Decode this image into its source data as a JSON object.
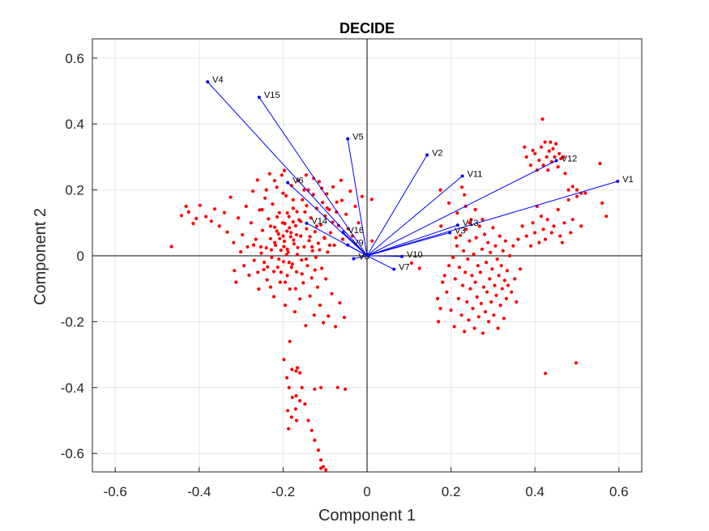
{
  "chart_data": {
    "type": "scatter",
    "title": "DECIDE",
    "xlabel": "Component 1",
    "ylabel": "Component 2",
    "xlim": [
      -0.65,
      0.65
    ],
    "ylim": [
      -0.65,
      0.65
    ],
    "xticks": [
      -0.6,
      -0.4,
      -0.2,
      0,
      0.2,
      0.4,
      0.6
    ],
    "yticks": [
      -0.6,
      -0.4,
      -0.2,
      0,
      0.2,
      0.4,
      0.6
    ],
    "xtick_labels": [
      "-0.6",
      "-0.4",
      "-0.2",
      "0",
      "0.2",
      "0.4",
      "0.6"
    ],
    "ytick_labels": [
      "-0.6",
      "-0.4",
      "-0.2",
      "0",
      "0.2",
      "0.4",
      "0.6"
    ],
    "grid": true,
    "colors": {
      "vectors": "#0000ff",
      "points": "#ff0000",
      "axes": "#262626",
      "grid": "#e6e6e6"
    },
    "vectors": [
      {
        "name": "V1",
        "x": 0.597,
        "y": 0.226
      },
      {
        "name": "V2",
        "x": 0.143,
        "y": 0.306
      },
      {
        "name": "V3",
        "x": 0.197,
        "y": 0.07
      },
      {
        "name": "V4",
        "x": -0.38,
        "y": 0.528
      },
      {
        "name": "V5",
        "x": -0.046,
        "y": 0.355
      },
      {
        "name": "V6",
        "x": -0.189,
        "y": 0.222
      },
      {
        "name": "V7",
        "x": 0.064,
        "y": -0.041
      },
      {
        "name": "V8",
        "x": -0.032,
        "y": -0.009
      },
      {
        "name": "V9",
        "x": -0.046,
        "y": 0.033
      },
      {
        "name": "V10",
        "x": 0.083,
        "y": -0.002
      },
      {
        "name": "V11",
        "x": 0.227,
        "y": 0.242
      },
      {
        "name": "V12",
        "x": 0.451,
        "y": 0.289
      },
      {
        "name": "V13",
        "x": 0.216,
        "y": 0.093
      },
      {
        "name": "V14",
        "x": -0.144,
        "y": 0.099
      },
      {
        "name": "V15",
        "x": -0.257,
        "y": 0.481
      },
      {
        "name": "V16",
        "x": -0.057,
        "y": 0.071
      }
    ],
    "points": [
      [
        -0.466,
        0.028
      ],
      [
        -0.442,
        0.122
      ],
      [
        -0.431,
        0.15
      ],
      [
        -0.425,
        0.133
      ],
      [
        -0.414,
        0.098
      ],
      [
        -0.407,
        0.113
      ],
      [
        -0.398,
        0.153
      ],
      [
        -0.384,
        0.119
      ],
      [
        -0.371,
        0.105
      ],
      [
        -0.363,
        0.142
      ],
      [
        -0.352,
        0.09
      ],
      [
        -0.34,
        0.131
      ],
      [
        -0.333,
        0.072
      ],
      [
        -0.325,
        0.178
      ],
      [
        -0.316,
        -0.045
      ],
      [
        -0.318,
        0.04
      ],
      [
        -0.312,
        -0.08
      ],
      [
        -0.307,
        0.115
      ],
      [
        -0.301,
        0.012
      ],
      [
        -0.297,
        0.064
      ],
      [
        -0.293,
        -0.03
      ],
      [
        -0.288,
        0.15
      ],
      [
        -0.285,
        0.027
      ],
      [
        -0.281,
        -0.059
      ],
      [
        -0.276,
        0.1
      ],
      [
        -0.272,
        0.196
      ],
      [
        -0.269,
        -0.014
      ],
      [
        -0.265,
        0.05
      ],
      [
        -0.261,
        0.23
      ],
      [
        -0.258,
        -0.101
      ],
      [
        -0.256,
        0.139
      ],
      [
        -0.252,
        0.008
      ],
      [
        -0.249,
        0.077
      ],
      [
        -0.246,
        -0.042
      ],
      [
        -0.243,
        0.175
      ],
      [
        -0.24,
        0.024
      ],
      [
        -0.238,
        -0.073
      ],
      [
        -0.235,
        0.112
      ],
      [
        -0.232,
        0.249
      ],
      [
        -0.23,
        0.052
      ],
      [
        -0.227,
        -0.005
      ],
      [
        -0.225,
        0.157
      ],
      [
        -0.222,
        -0.124
      ],
      [
        -0.22,
        0.087
      ],
      [
        -0.218,
        0.032
      ],
      [
        -0.215,
        0.208
      ],
      [
        -0.213,
        -0.035
      ],
      [
        -0.211,
        0.066
      ],
      [
        -0.209,
        0.131
      ],
      [
        -0.207,
        -0.08
      ],
      [
        -0.205,
        0.017
      ],
      [
        -0.203,
        0.245
      ],
      [
        -0.201,
        0.1
      ],
      [
        -0.199,
        -0.018
      ],
      [
        -0.197,
        0.044
      ],
      [
        -0.195,
        -0.15
      ],
      [
        -0.193,
        0.182
      ],
      [
        -0.191,
        0.075
      ],
      [
        -0.19,
        -0.06
      ],
      [
        -0.188,
        0.011
      ],
      [
        -0.186,
        0.119
      ],
      [
        -0.184,
        -0.101
      ],
      [
        -0.182,
        0.058
      ],
      [
        -0.18,
        0.213
      ],
      [
        -0.178,
        -0.025
      ],
      [
        -0.176,
        0.144
      ],
      [
        -0.174,
        0.036
      ],
      [
        -0.172,
        -0.17
      ],
      [
        -0.17,
        0.091
      ],
      [
        -0.168,
        -0.049
      ],
      [
        -0.166,
        0.004
      ],
      [
        -0.164,
        0.228
      ],
      [
        -0.162,
        0.109
      ],
      [
        -0.16,
        -0.131
      ],
      [
        -0.158,
        0.06
      ],
      [
        -0.156,
        -0.013
      ],
      [
        -0.154,
        0.17
      ],
      [
        -0.152,
        -0.082
      ],
      [
        -0.15,
        0.027
      ],
      [
        -0.148,
        0.133
      ],
      [
        -0.146,
        -0.212
      ],
      [
        -0.144,
        0.082
      ],
      [
        -0.142,
        -0.03
      ],
      [
        -0.14,
        0.2
      ],
      [
        -0.138,
        0.046
      ],
      [
        -0.136,
        -0.122
      ],
      [
        -0.134,
        0.115
      ],
      [
        -0.132,
        -0.067
      ],
      [
        -0.13,
        0.015
      ],
      [
        -0.128,
        0.186
      ],
      [
        -0.126,
        -0.18
      ],
      [
        -0.124,
        0.073
      ],
      [
        -0.122,
        -0.005
      ],
      [
        -0.12,
        0.144
      ],
      [
        -0.118,
        -0.095
      ],
      [
        -0.116,
        0.038
      ],
      [
        -0.114,
        0.225
      ],
      [
        -0.112,
        -0.15
      ],
      [
        -0.11,
        0.094
      ],
      [
        -0.108,
        -0.038
      ],
      [
        -0.106,
        0.162
      ],
      [
        -0.104,
        -0.203
      ],
      [
        -0.102,
        0.055
      ],
      [
        -0.1,
        0.121
      ],
      [
        -0.098,
        -0.07
      ],
      [
        -0.096,
        0.188
      ],
      [
        -0.094,
        0.011
      ],
      [
        -0.092,
        -0.183
      ],
      [
        -0.09,
        0.14
      ],
      [
        -0.087,
        0.07
      ],
      [
        -0.084,
        -0.115
      ],
      [
        -0.081,
        0.209
      ],
      [
        -0.078,
        0.032
      ],
      [
        -0.075,
        -0.215
      ],
      [
        -0.072,
        0.163
      ],
      [
        -0.068,
        0.092
      ],
      [
        -0.065,
        -0.143
      ],
      [
        -0.062,
        0.229
      ],
      [
        -0.058,
        0.05
      ],
      [
        -0.054,
        -0.187
      ],
      [
        -0.05,
        0.126
      ],
      [
        -0.045,
        0.082
      ],
      [
        -0.04,
        0.196
      ],
      [
        -0.035,
        0.06
      ],
      [
        -0.028,
        0.15
      ],
      [
        -0.02,
        0.1
      ],
      [
        -0.012,
        0.18
      ],
      [
        0.011,
        0.171
      ],
      [
        0.012,
        0.045
      ],
      [
        -0.27,
        0.033
      ],
      [
        -0.214,
        0.118
      ],
      [
        -0.176,
        0.17
      ],
      [
        -0.144,
        0.152
      ],
      [
        -0.2,
        0.06
      ],
      [
        -0.19,
        0.02
      ],
      [
        -0.21,
        -0.01
      ],
      [
        -0.22,
        0.04
      ],
      [
        -0.23,
        0.09
      ],
      [
        -0.185,
        0.085
      ],
      [
        -0.175,
        0.048
      ],
      [
        -0.165,
        0.025
      ],
      [
        -0.205,
        -0.05
      ],
      [
        -0.18,
        -0.035
      ],
      [
        -0.23,
        -0.095
      ],
      [
        -0.245,
        -0.02
      ],
      [
        -0.26,
        -0.05
      ],
      [
        -0.25,
        0.14
      ],
      [
        -0.24,
        0.2
      ],
      [
        -0.15,
        0.2
      ],
      [
        -0.2,
        0.19
      ],
      [
        -0.12,
        0.09
      ],
      [
        -0.17,
        -0.1
      ],
      [
        -0.155,
        -0.055
      ],
      [
        -0.195,
        -0.08
      ],
      [
        -0.215,
        0.075
      ],
      [
        -0.19,
        0.13
      ],
      [
        -0.176,
        0.103
      ],
      [
        -0.198,
        0.028
      ],
      [
        -0.192,
        0.003
      ],
      [
        -0.186,
        -0.02
      ],
      [
        -0.208,
        0.052
      ],
      [
        -0.181,
        0.07
      ],
      [
        -0.228,
        0.018
      ],
      [
        -0.237,
        -0.034
      ],
      [
        -0.253,
        0.027
      ],
      [
        -0.222,
        -0.048
      ],
      [
        -0.196,
        0.098
      ],
      [
        -0.167,
        0.134
      ],
      [
        -0.158,
        0.104
      ],
      [
        -0.168,
        0.064
      ],
      [
        -0.136,
        0.058
      ],
      [
        -0.131,
        0.027
      ],
      [
        -0.145,
        -0.01
      ],
      [
        -0.124,
        -0.043
      ],
      [
        -0.101,
        0.053
      ],
      [
        -0.113,
        0.018
      ],
      [
        -0.089,
        0.032
      ],
      [
        -0.082,
        0.102
      ],
      [
        -0.073,
        0.133
      ],
      [
        -0.06,
        0.168
      ],
      [
        -0.095,
        0.145
      ],
      [
        -0.108,
        0.205
      ],
      [
        -0.127,
        0.235
      ],
      [
        -0.145,
        0.245
      ],
      [
        -0.197,
        0.259
      ],
      [
        -0.22,
        0.228
      ],
      [
        -0.184,
        -0.26
      ],
      [
        -0.198,
        -0.315
      ],
      [
        -0.191,
        -0.37
      ],
      [
        -0.179,
        -0.345
      ],
      [
        -0.169,
        -0.35
      ],
      [
        -0.16,
        -0.355
      ],
      [
        -0.166,
        -0.34
      ],
      [
        -0.186,
        -0.4
      ],
      [
        -0.178,
        -0.43
      ],
      [
        -0.169,
        -0.425
      ],
      [
        -0.16,
        -0.44
      ],
      [
        -0.189,
        -0.47
      ],
      [
        -0.18,
        -0.49
      ],
      [
        -0.17,
        -0.465
      ],
      [
        -0.155,
        -0.4
      ],
      [
        -0.148,
        -0.45
      ],
      [
        -0.14,
        -0.5
      ],
      [
        -0.132,
        -0.53
      ],
      [
        -0.125,
        -0.56
      ],
      [
        -0.116,
        -0.59
      ],
      [
        -0.11,
        -0.62
      ],
      [
        -0.104,
        -0.64
      ],
      [
        -0.098,
        -0.65
      ],
      [
        -0.11,
        -0.645
      ],
      [
        -0.187,
        -0.525
      ],
      [
        -0.168,
        -0.5
      ],
      [
        -0.125,
        -0.405
      ],
      [
        -0.11,
        -0.4
      ],
      [
        -0.07,
        -0.4
      ],
      [
        -0.052,
        -0.405
      ],
      [
        0.106,
        -0.022
      ],
      [
        0.125,
        -0.038
      ],
      [
        0.175,
        0.2
      ],
      [
        0.195,
        0.16
      ],
      [
        0.215,
        0.13
      ],
      [
        0.226,
        0.208
      ],
      [
        0.232,
        0.185
      ],
      [
        0.235,
        0.15
      ],
      [
        0.18,
        -0.08
      ],
      [
        0.17,
        -0.2
      ],
      [
        0.168,
        -0.13
      ],
      [
        0.175,
        -0.16
      ],
      [
        0.185,
        -0.06
      ],
      [
        0.19,
        -0.11
      ],
      [
        0.195,
        -0.03
      ],
      [
        0.2,
        -0.165
      ],
      [
        0.205,
        -0.005
      ],
      [
        0.208,
        -0.215
      ],
      [
        0.21,
        -0.07
      ],
      [
        0.214,
        0.03
      ],
      [
        0.218,
        -0.13
      ],
      [
        0.22,
        -0.035
      ],
      [
        0.222,
        0.062
      ],
      [
        0.225,
        -0.18
      ],
      [
        0.228,
        -0.09
      ],
      [
        0.23,
        0.015
      ],
      [
        0.232,
        -0.23
      ],
      [
        0.234,
        -0.05
      ],
      [
        0.236,
        0.08
      ],
      [
        0.238,
        -0.14
      ],
      [
        0.24,
        -0.01
      ],
      [
        0.242,
        -0.195
      ],
      [
        0.244,
        0.045
      ],
      [
        0.246,
        -0.1
      ],
      [
        0.248,
        0.11
      ],
      [
        0.25,
        -0.06
      ],
      [
        0.252,
        -0.16
      ],
      [
        0.254,
        0.005
      ],
      [
        0.256,
        -0.22
      ],
      [
        0.258,
        -0.08
      ],
      [
        0.26,
        0.055
      ],
      [
        0.262,
        -0.125
      ],
      [
        0.264,
        -0.03
      ],
      [
        0.266,
        -0.185
      ],
      [
        0.268,
        0.09
      ],
      [
        0.27,
        -0.05
      ],
      [
        0.272,
        -0.145
      ],
      [
        0.274,
        0.02
      ],
      [
        0.276,
        -0.235
      ],
      [
        0.278,
        -0.095
      ],
      [
        0.28,
        0.065
      ],
      [
        0.282,
        -0.17
      ],
      [
        0.284,
        -0.02
      ],
      [
        0.286,
        -0.11
      ],
      [
        0.288,
        0.04
      ],
      [
        0.29,
        -0.2
      ],
      [
        0.292,
        -0.07
      ],
      [
        0.294,
        0.01
      ],
      [
        0.296,
        -0.14
      ],
      [
        0.298,
        -0.04
      ],
      [
        0.3,
        0.085
      ],
      [
        0.302,
        -0.18
      ],
      [
        0.304,
        -0.09
      ],
      [
        0.306,
        0.03
      ],
      [
        0.308,
        -0.12
      ],
      [
        0.31,
        -0.01
      ],
      [
        0.312,
        -0.22
      ],
      [
        0.314,
        -0.06
      ],
      [
        0.316,
        0.06
      ],
      [
        0.318,
        -0.15
      ],
      [
        0.32,
        -0.03
      ],
      [
        0.322,
        -0.1
      ],
      [
        0.324,
        0.015
      ],
      [
        0.326,
        -0.19
      ],
      [
        0.328,
        -0.075
      ],
      [
        0.33,
        0.045
      ],
      [
        0.332,
        -0.13
      ],
      [
        0.334,
        -0.045
      ],
      [
        0.336,
        -0.09
      ],
      [
        0.34,
        0.0
      ],
      [
        0.344,
        -0.11
      ],
      [
        0.348,
        0.03
      ],
      [
        0.352,
        -0.07
      ],
      [
        0.356,
        -0.14
      ],
      [
        0.36,
        0.05
      ],
      [
        0.365,
        -0.04
      ],
      [
        0.37,
        0.09
      ],
      [
        0.38,
        0.06
      ],
      [
        0.39,
        0.03
      ],
      [
        0.395,
        0.1
      ],
      [
        0.4,
        0.07
      ],
      [
        0.405,
        0.15
      ],
      [
        0.41,
        0.04
      ],
      [
        0.415,
        0.12
      ],
      [
        0.42,
        0.08
      ],
      [
        0.425,
        0.05
      ],
      [
        0.43,
        0.11
      ],
      [
        0.44,
        0.07
      ],
      [
        0.445,
        0.09
      ],
      [
        0.455,
        0.14
      ],
      [
        0.46,
        0.06
      ],
      [
        0.465,
        0.04
      ],
      [
        0.47,
        0.1
      ],
      [
        0.48,
        0.17
      ],
      [
        0.485,
        0.07
      ],
      [
        0.49,
        0.11
      ],
      [
        0.5,
        0.18
      ],
      [
        0.51,
        0.09
      ],
      [
        0.52,
        0.19
      ],
      [
        0.375,
        0.33
      ],
      [
        0.38,
        0.3
      ],
      [
        0.39,
        0.275
      ],
      [
        0.395,
        0.32
      ],
      [
        0.4,
        0.31
      ],
      [
        0.405,
        0.26
      ],
      [
        0.41,
        0.29
      ],
      [
        0.415,
        0.33
      ],
      [
        0.418,
        0.415
      ],
      [
        0.42,
        0.275
      ],
      [
        0.424,
        0.345
      ],
      [
        0.428,
        0.3
      ],
      [
        0.431,
        0.26
      ],
      [
        0.434,
        0.318
      ],
      [
        0.437,
        0.345
      ],
      [
        0.44,
        0.285
      ],
      [
        0.443,
        0.325
      ],
      [
        0.447,
        0.3
      ],
      [
        0.45,
        0.34
      ],
      [
        0.455,
        0.27
      ],
      [
        0.458,
        0.31
      ],
      [
        0.462,
        0.295
      ],
      [
        0.468,
        0.3
      ],
      [
        0.472,
        0.25
      ],
      [
        0.48,
        0.2
      ],
      [
        0.49,
        0.21
      ],
      [
        0.5,
        0.2
      ],
      [
        0.51,
        0.19
      ],
      [
        0.56,
        0.16
      ],
      [
        0.57,
        0.12
      ],
      [
        0.555,
        0.28
      ],
      [
        0.425,
        -0.357
      ],
      [
        0.498,
        -0.325
      ],
      [
        0.176,
        0.09
      ],
      [
        0.212,
        0.055
      ],
      [
        0.244,
        0.1
      ],
      [
        0.258,
        0.14
      ],
      [
        0.275,
        0.11
      ]
    ]
  }
}
